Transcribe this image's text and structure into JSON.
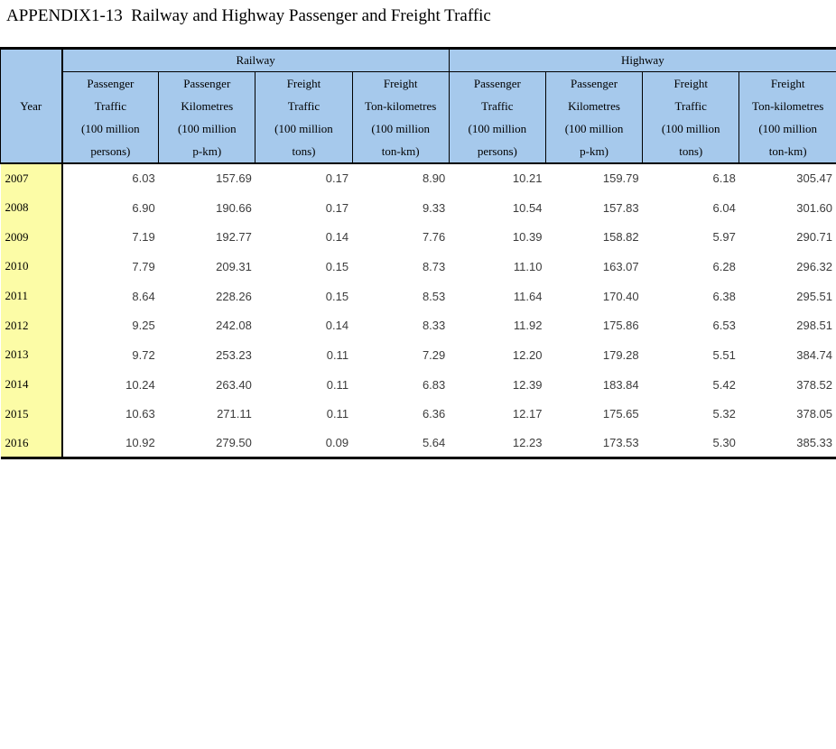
{
  "page": {
    "title": "APPENDIX1-13  Railway and Highway Passenger and Freight Traffic"
  },
  "colors": {
    "header_bg": "#A6C9EC",
    "year_col_bg": "#FCFCA6",
    "border": "#000000",
    "value_text": "#3C3C3C"
  },
  "table": {
    "year_header": "Year",
    "groups": [
      {
        "label": "Railway"
      },
      {
        "label": "Highway"
      }
    ],
    "columns": [
      {
        "lines": [
          "Passenger",
          "Traffic",
          "(100 million",
          "persons)"
        ]
      },
      {
        "lines": [
          "Passenger",
          "Kilometres",
          "(100 million",
          "p-km)"
        ]
      },
      {
        "lines": [
          "Freight",
          "Traffic",
          "(100 million",
          "tons)"
        ]
      },
      {
        "lines": [
          "Freight",
          "Ton-kilometres",
          "(100 million",
          "ton-km)"
        ]
      },
      {
        "lines": [
          "Passenger",
          "Traffic",
          "(100 million",
          "persons)"
        ]
      },
      {
        "lines": [
          "Passenger",
          "Kilometres",
          "(100 million",
          "p-km)"
        ]
      },
      {
        "lines": [
          "Freight",
          "Traffic",
          "(100 million",
          "tons)"
        ]
      },
      {
        "lines": [
          "Freight",
          "Ton-kilometres",
          "(100 million",
          "ton-km)"
        ]
      }
    ],
    "rows": [
      {
        "year": "2007",
        "values": [
          "6.03",
          "157.69",
          "0.17",
          "8.90",
          "10.21",
          "159.79",
          "6.18",
          "305.47"
        ]
      },
      {
        "year": "2008",
        "values": [
          "6.90",
          "190.66",
          "0.17",
          "9.33",
          "10.54",
          "157.83",
          "6.04",
          "301.60"
        ]
      },
      {
        "year": "2009",
        "values": [
          "7.19",
          "192.77",
          "0.14",
          "7.76",
          "10.39",
          "158.82",
          "5.97",
          "290.71"
        ]
      },
      {
        "year": "2010",
        "values": [
          "7.79",
          "209.31",
          "0.15",
          "8.73",
          "11.10",
          "163.07",
          "6.28",
          "296.32"
        ]
      },
      {
        "year": "2011",
        "values": [
          "8.64",
          "228.26",
          "0.15",
          "8.53",
          "11.64",
          "170.40",
          "6.38",
          "295.51"
        ]
      },
      {
        "year": "2012",
        "values": [
          "9.25",
          "242.08",
          "0.14",
          "8.33",
          "11.92",
          "175.86",
          "6.53",
          "298.51"
        ]
      },
      {
        "year": "2013",
        "values": [
          "9.72",
          "253.23",
          "0.11",
          "7.29",
          "12.20",
          "179.28",
          "5.51",
          "384.74"
        ]
      },
      {
        "year": "2014",
        "values": [
          "10.24",
          "263.40",
          "0.11",
          "6.83",
          "12.39",
          "183.84",
          "5.42",
          "378.52"
        ]
      },
      {
        "year": "2015",
        "values": [
          "10.63",
          "271.11",
          "0.11",
          "6.36",
          "12.17",
          "175.65",
          "5.32",
          "378.05"
        ]
      },
      {
        "year": "2016",
        "values": [
          "10.92",
          "279.50",
          "0.09",
          "5.64",
          "12.23",
          "173.53",
          "5.30",
          "385.33"
        ]
      }
    ]
  }
}
